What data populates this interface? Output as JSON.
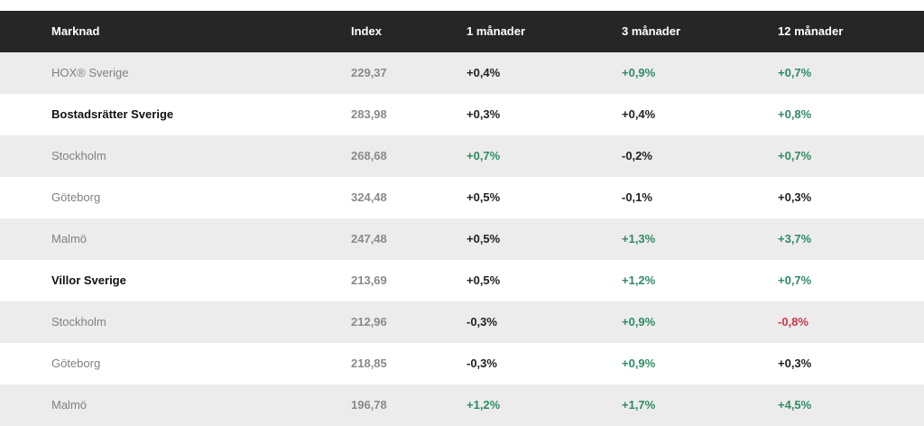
{
  "colors": {
    "header_bg": "#262626",
    "positive": "#2f8b64",
    "negative": "#c8394a",
    "neutral": "#222222",
    "row_shade": "#ececec"
  },
  "header": [
    "Marknad",
    "Index",
    "1 månader",
    "3 månader",
    "12 månader"
  ],
  "rows": [
    {
      "market": "HOX® Sverige",
      "bold": false,
      "index": "229,37",
      "m1": "+0,4%",
      "m1s": "neutral",
      "m3": "+0,9%",
      "m3s": "pos",
      "m12": "+0,7%",
      "m12s": "pos"
    },
    {
      "market": "Bostadsrätter Sverige",
      "bold": true,
      "index": "283,98",
      "m1": "+0,3%",
      "m1s": "neutral",
      "m3": "+0,4%",
      "m3s": "neutral",
      "m12": "+0,8%",
      "m12s": "pos"
    },
    {
      "market": "Stockholm",
      "bold": false,
      "index": "268,68",
      "m1": "+0,7%",
      "m1s": "pos",
      "m3": "-0,2%",
      "m3s": "neutral",
      "m12": "+0,7%",
      "m12s": "pos"
    },
    {
      "market": "Göteborg",
      "bold": false,
      "index": "324,48",
      "m1": "+0,5%",
      "m1s": "neutral",
      "m3": "-0,1%",
      "m3s": "neutral",
      "m12": "+0,3%",
      "m12s": "neutral"
    },
    {
      "market": "Malmö",
      "bold": false,
      "index": "247,48",
      "m1": "+0,5%",
      "m1s": "neutral",
      "m3": "+1,3%",
      "m3s": "pos",
      "m12": "+3,7%",
      "m12s": "pos"
    },
    {
      "market": "Villor Sverige",
      "bold": true,
      "index": "213,69",
      "m1": "+0,5%",
      "m1s": "neutral",
      "m3": "+1,2%",
      "m3s": "pos",
      "m12": "+0,7%",
      "m12s": "pos"
    },
    {
      "market": "Stockholm",
      "bold": false,
      "index": "212,96",
      "m1": "-0,3%",
      "m1s": "neutral",
      "m3": "+0,9%",
      "m3s": "pos",
      "m12": "-0,8%",
      "m12s": "neg"
    },
    {
      "market": "Göteborg",
      "bold": false,
      "index": "218,85",
      "m1": "-0,3%",
      "m1s": "neutral",
      "m3": "+0,9%",
      "m3s": "pos",
      "m12": "+0,3%",
      "m12s": "neutral"
    },
    {
      "market": "Malmö",
      "bold": false,
      "index": "196,78",
      "m1": "+1,2%",
      "m1s": "pos",
      "m3": "+1,7%",
      "m3s": "pos",
      "m12": "+4,5%",
      "m12s": "pos"
    }
  ]
}
